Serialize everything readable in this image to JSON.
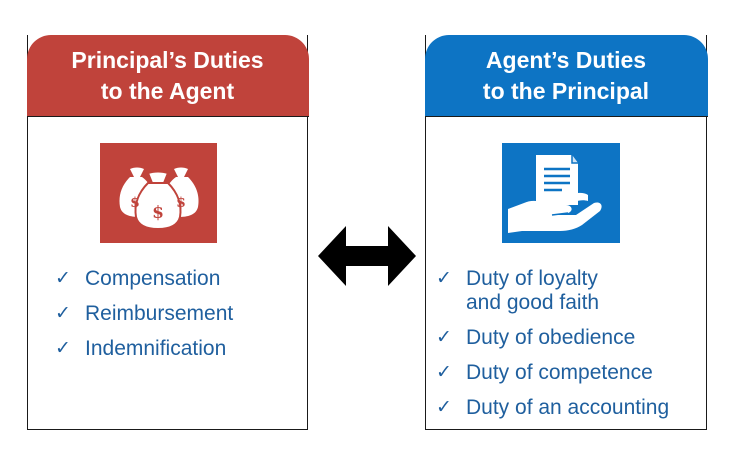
{
  "colors": {
    "principal_accent": "#c0433b",
    "agent_accent": "#0d74c4",
    "text_blue": "#1f5f9e",
    "border": "#1a1a1a"
  },
  "left_card": {
    "title_line1": "Principal’s Duties",
    "title_line2": "to the Agent",
    "icon": "money-bags-icon",
    "icon_label": "$",
    "items": [
      "Compensation",
      "Reimbursement",
      "Indemnification"
    ]
  },
  "right_card": {
    "title_line1": "Agent’s Duties",
    "title_line2": "to the Principal",
    "icon": "document-in-hand-icon",
    "items": [
      {
        "line1": "Duty of loyalty",
        "line2": "and good faith"
      },
      {
        "line1": "Duty of obedience"
      },
      {
        "line1": "Duty of competence"
      },
      {
        "line1": "Duty of an accounting"
      }
    ]
  },
  "connector": {
    "icon": "double-arrow-icon"
  },
  "check_mark": "✓"
}
